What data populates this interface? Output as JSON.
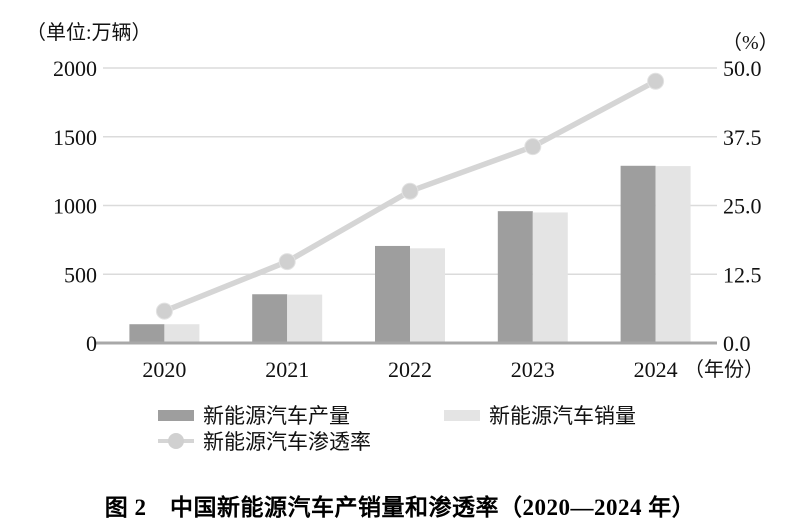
{
  "figure": {
    "caption": "图 2　中国新能源汽车产销量和渗透率（2020—2024 年）"
  },
  "legend": {
    "production": "新能源汽车产量",
    "sales": "新能源汽车销量",
    "penetration": "新能源汽车渗透率"
  },
  "colors": {
    "production_bar": "#9e9e9e",
    "sales_bar": "#e4e4e4",
    "penetration_line": "#d5d5d5",
    "marker": "#d0d0d0",
    "gridline": "#dbdbdb",
    "axis": "#a8a8a8",
    "text": "#111111"
  },
  "chart_data": {
    "type": "bar",
    "subtype": "grouped-bars-with-line",
    "title": "图 2　中国新能源汽车产销量和渗透率（2020—2024 年）",
    "categories": [
      "2020",
      "2021",
      "2022",
      "2023",
      "2024"
    ],
    "series": [
      {
        "name": "新能源汽车产量",
        "type": "bar",
        "axis": "left",
        "color": "#9e9e9e",
        "values": [
          136.6,
          354.5,
          705.8,
          958.7,
          1288.8
        ]
      },
      {
        "name": "新能源汽车销量",
        "type": "bar",
        "axis": "left",
        "color": "#e4e4e4",
        "values": [
          136.7,
          352.1,
          688.7,
          949.5,
          1286.6
        ]
      },
      {
        "name": "新能源汽车渗透率",
        "type": "line",
        "axis": "right",
        "color": "#d5d5d5",
        "values": [
          5.8,
          14.8,
          27.6,
          35.7,
          47.6
        ]
      }
    ],
    "left_axis": {
      "unit": "（单位:万辆）",
      "min": 0,
      "max": 2000,
      "ticks": [
        0,
        500,
        1000,
        1500,
        2000
      ],
      "tick_labels": [
        "0",
        "500",
        "1000",
        "1500",
        "2000"
      ]
    },
    "right_axis": {
      "unit": "（%）",
      "min": 0,
      "max": 50,
      "ticks": [
        0,
        12.5,
        25,
        37.5,
        50
      ],
      "tick_labels": [
        "0.0",
        "12.5",
        "25.0",
        "37.5",
        "50.0"
      ]
    },
    "xlabel": "（年份）",
    "grid": true,
    "legend_position": "bottom"
  }
}
